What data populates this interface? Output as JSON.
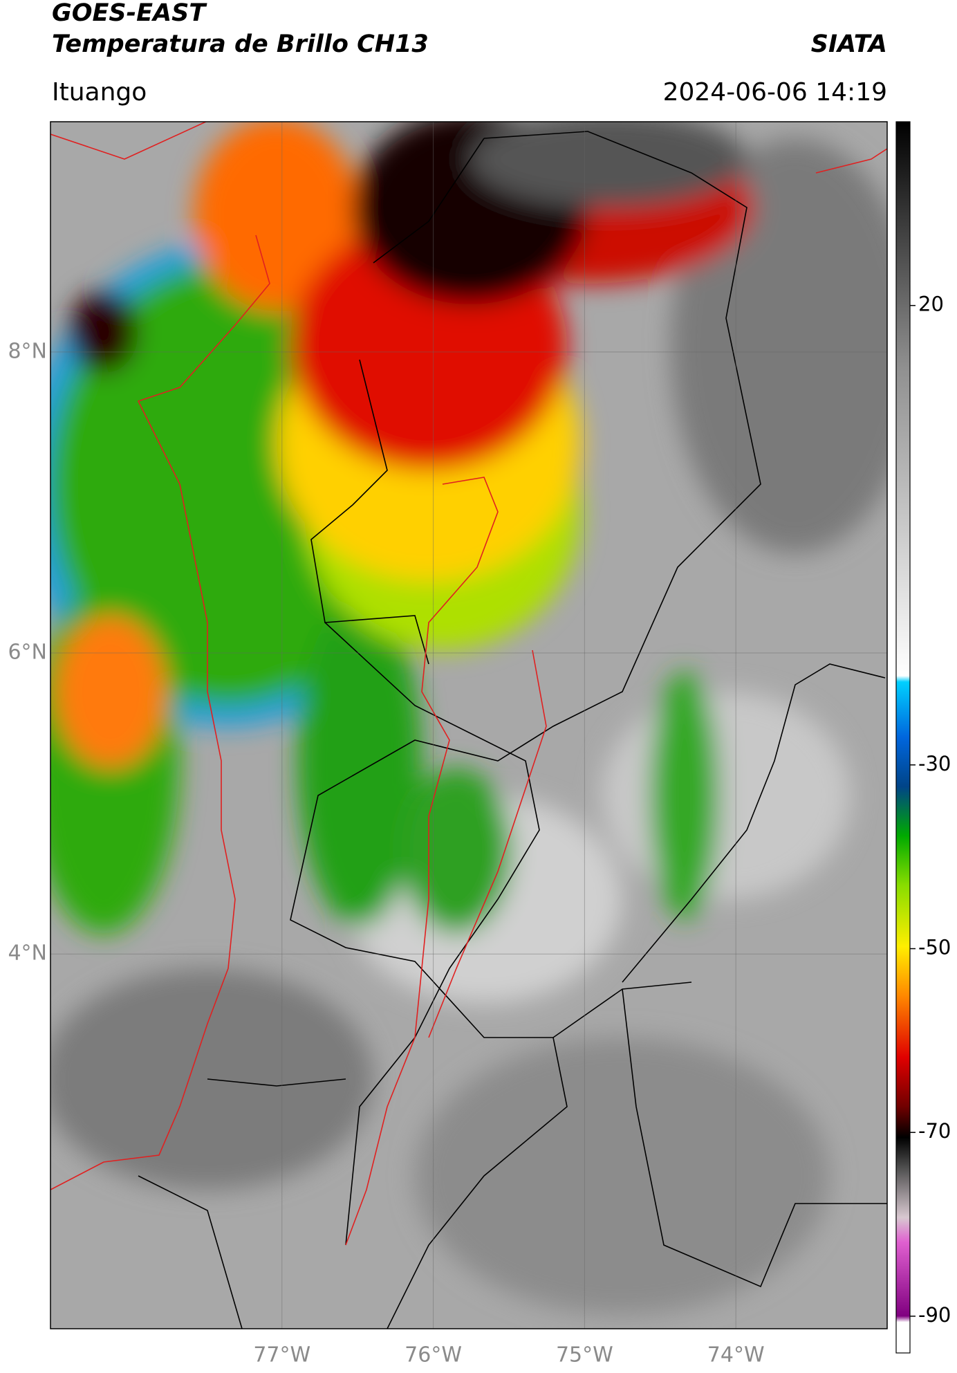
{
  "header": {
    "title": "GOES-EAST",
    "subtitle": "Temperatura de Brillo CH13",
    "source": "SIATA",
    "location": "Ituango",
    "timestamp": "2024-06-06 14:19"
  },
  "map": {
    "xlim": [
      -78.53,
      -73.0
    ],
    "ylim": [
      1.51,
      9.53
    ],
    "xticks": [
      {
        "value": -77,
        "label": "77°W"
      },
      {
        "value": -76,
        "label": "76°W"
      },
      {
        "value": -75,
        "label": "75°W"
      },
      {
        "value": -74,
        "label": "74°W"
      }
    ],
    "yticks": [
      {
        "value": 8,
        "label": "8°N"
      },
      {
        "value": 6,
        "label": "6°N"
      },
      {
        "value": 4,
        "label": "4°N"
      }
    ],
    "grid": true
  },
  "colorbar": {
    "lim": [
      -94,
      40
    ],
    "ticks": [
      20,
      -30,
      -50,
      -70,
      -90
    ]
  }
}
